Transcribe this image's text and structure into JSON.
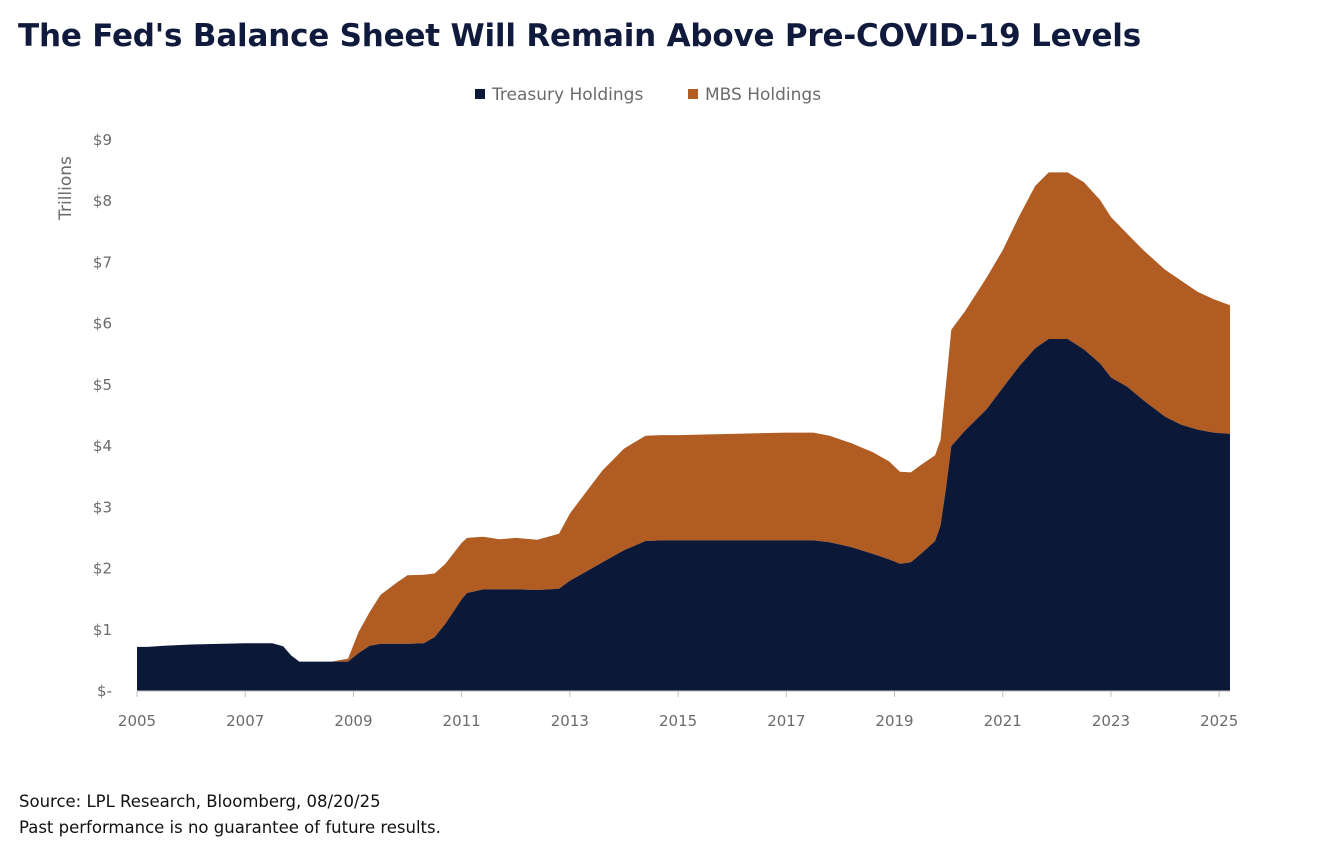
{
  "title": "The Fed's Balance Sheet Will Remain Above Pre-COVID-19 Levels",
  "source": "Source: LPL Research, Bloomberg, 08/20/25",
  "disclaimer": "Past performance is no guarantee of future results.",
  "colors": {
    "treasury": "#0c1838",
    "mbs": "#b05c22",
    "title": "#0f1a3c",
    "axis": "#6b6b6b"
  },
  "chart_data": {
    "type": "area",
    "stacked": true,
    "ylabel": "Trillions",
    "ylim": [
      0,
      9
    ],
    "xlim": [
      2005.0,
      2025.2
    ],
    "yticks": [
      {
        "value": 0,
        "label": "$-"
      },
      {
        "value": 1,
        "label": "$1"
      },
      {
        "value": 2,
        "label": "$2"
      },
      {
        "value": 3,
        "label": "$3"
      },
      {
        "value": 4,
        "label": "$4"
      },
      {
        "value": 5,
        "label": "$5"
      },
      {
        "value": 6,
        "label": "$6"
      },
      {
        "value": 7,
        "label": "$7"
      },
      {
        "value": 8,
        "label": "$8"
      },
      {
        "value": 9,
        "label": "$9"
      }
    ],
    "xticks": [
      {
        "value": 2005,
        "label": "2005"
      },
      {
        "value": 2007,
        "label": "2007"
      },
      {
        "value": 2009,
        "label": "2009"
      },
      {
        "value": 2011,
        "label": "2011"
      },
      {
        "value": 2013,
        "label": "2013"
      },
      {
        "value": 2015,
        "label": "2015"
      },
      {
        "value": 2017,
        "label": "2017"
      },
      {
        "value": 2019,
        "label": "2019"
      },
      {
        "value": 2021,
        "label": "2021"
      },
      {
        "value": 2023,
        "label": "2023"
      },
      {
        "value": 2025,
        "label": "2025"
      }
    ],
    "legend_position": "top-center",
    "series": [
      {
        "name": "Treasury Holdings",
        "color": "#0c1838",
        "points": [
          [
            2005.0,
            0.72
          ],
          [
            2005.2,
            0.72
          ],
          [
            2005.5,
            0.74
          ],
          [
            2006.0,
            0.76
          ],
          [
            2006.5,
            0.77
          ],
          [
            2007.0,
            0.78
          ],
          [
            2007.5,
            0.78
          ],
          [
            2007.7,
            0.73
          ],
          [
            2007.85,
            0.58
          ],
          [
            2008.0,
            0.48
          ],
          [
            2008.3,
            0.48
          ],
          [
            2008.6,
            0.48
          ],
          [
            2008.9,
            0.48
          ],
          [
            2009.1,
            0.62
          ],
          [
            2009.3,
            0.74
          ],
          [
            2009.5,
            0.77
          ],
          [
            2010.0,
            0.77
          ],
          [
            2010.3,
            0.78
          ],
          [
            2010.5,
            0.88
          ],
          [
            2010.7,
            1.1
          ],
          [
            2011.0,
            1.5
          ],
          [
            2011.1,
            1.6
          ],
          [
            2011.4,
            1.66
          ],
          [
            2011.7,
            1.66
          ],
          [
            2012.0,
            1.66
          ],
          [
            2012.4,
            1.65
          ],
          [
            2012.8,
            1.67
          ],
          [
            2013.0,
            1.8
          ],
          [
            2013.3,
            1.95
          ],
          [
            2013.6,
            2.1
          ],
          [
            2014.0,
            2.3
          ],
          [
            2014.4,
            2.45
          ],
          [
            2014.7,
            2.46
          ],
          [
            2015.0,
            2.46
          ],
          [
            2016.0,
            2.46
          ],
          [
            2017.0,
            2.46
          ],
          [
            2017.5,
            2.46
          ],
          [
            2017.8,
            2.43
          ],
          [
            2018.2,
            2.35
          ],
          [
            2018.6,
            2.24
          ],
          [
            2018.9,
            2.15
          ],
          [
            2019.1,
            2.08
          ],
          [
            2019.3,
            2.1
          ],
          [
            2019.5,
            2.25
          ],
          [
            2019.75,
            2.45
          ],
          [
            2019.85,
            2.7
          ],
          [
            2019.95,
            3.3
          ],
          [
            2020.05,
            4.0
          ],
          [
            2020.3,
            4.25
          ],
          [
            2020.7,
            4.6
          ],
          [
            2021.0,
            4.95
          ],
          [
            2021.3,
            5.3
          ],
          [
            2021.6,
            5.6
          ],
          [
            2021.85,
            5.75
          ],
          [
            2022.2,
            5.75
          ],
          [
            2022.5,
            5.58
          ],
          [
            2022.8,
            5.35
          ],
          [
            2023.0,
            5.12
          ],
          [
            2023.3,
            4.97
          ],
          [
            2023.6,
            4.75
          ],
          [
            2024.0,
            4.48
          ],
          [
            2024.3,
            4.35
          ],
          [
            2024.6,
            4.27
          ],
          [
            2024.9,
            4.22
          ],
          [
            2025.2,
            4.2
          ]
        ]
      },
      {
        "name": "MBS Holdings",
        "color": "#b05c22",
        "points": [
          [
            2005.0,
            0.0
          ],
          [
            2008.6,
            0.0
          ],
          [
            2008.9,
            0.05
          ],
          [
            2009.1,
            0.35
          ],
          [
            2009.3,
            0.55
          ],
          [
            2009.5,
            0.8
          ],
          [
            2009.8,
            1.0
          ],
          [
            2010.0,
            1.12
          ],
          [
            2010.3,
            1.12
          ],
          [
            2010.5,
            1.04
          ],
          [
            2010.7,
            0.98
          ],
          [
            2011.0,
            0.92
          ],
          [
            2011.1,
            0.9
          ],
          [
            2011.4,
            0.86
          ],
          [
            2011.7,
            0.82
          ],
          [
            2012.0,
            0.84
          ],
          [
            2012.4,
            0.82
          ],
          [
            2012.8,
            0.9
          ],
          [
            2013.0,
            1.1
          ],
          [
            2013.3,
            1.3
          ],
          [
            2013.6,
            1.5
          ],
          [
            2014.0,
            1.66
          ],
          [
            2014.4,
            1.72
          ],
          [
            2014.7,
            1.72
          ],
          [
            2015.0,
            1.72
          ],
          [
            2016.0,
            1.74
          ],
          [
            2017.0,
            1.76
          ],
          [
            2017.5,
            1.76
          ],
          [
            2017.8,
            1.74
          ],
          [
            2018.2,
            1.7
          ],
          [
            2018.6,
            1.66
          ],
          [
            2018.9,
            1.6
          ],
          [
            2019.1,
            1.5
          ],
          [
            2019.3,
            1.47
          ],
          [
            2019.5,
            1.45
          ],
          [
            2019.75,
            1.4
          ],
          [
            2019.85,
            1.4
          ],
          [
            2019.95,
            1.7
          ],
          [
            2020.05,
            1.9
          ],
          [
            2020.3,
            1.95
          ],
          [
            2020.7,
            2.15
          ],
          [
            2021.0,
            2.25
          ],
          [
            2021.3,
            2.45
          ],
          [
            2021.6,
            2.65
          ],
          [
            2021.85,
            2.72
          ],
          [
            2022.2,
            2.72
          ],
          [
            2022.5,
            2.73
          ],
          [
            2022.8,
            2.67
          ],
          [
            2023.0,
            2.62
          ],
          [
            2023.3,
            2.5
          ],
          [
            2023.6,
            2.45
          ],
          [
            2024.0,
            2.4
          ],
          [
            2024.3,
            2.35
          ],
          [
            2024.6,
            2.25
          ],
          [
            2024.9,
            2.18
          ],
          [
            2025.2,
            2.1
          ]
        ]
      }
    ]
  }
}
